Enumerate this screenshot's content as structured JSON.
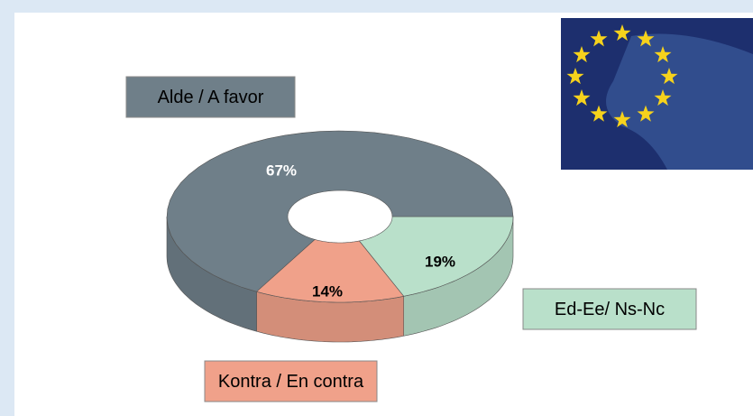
{
  "chart_data": {
    "type": "pie",
    "categories": [
      "Alde / A favor",
      "Kontra / En contra",
      "Ed-Ee/ Ns-Nc"
    ],
    "values": [
      67,
      14,
      19
    ],
    "value_labels": [
      "67%",
      "14%",
      "19%"
    ],
    "colors": [
      "#6f7f89",
      "#f0a18a",
      "#b9e0ca"
    ]
  }
}
